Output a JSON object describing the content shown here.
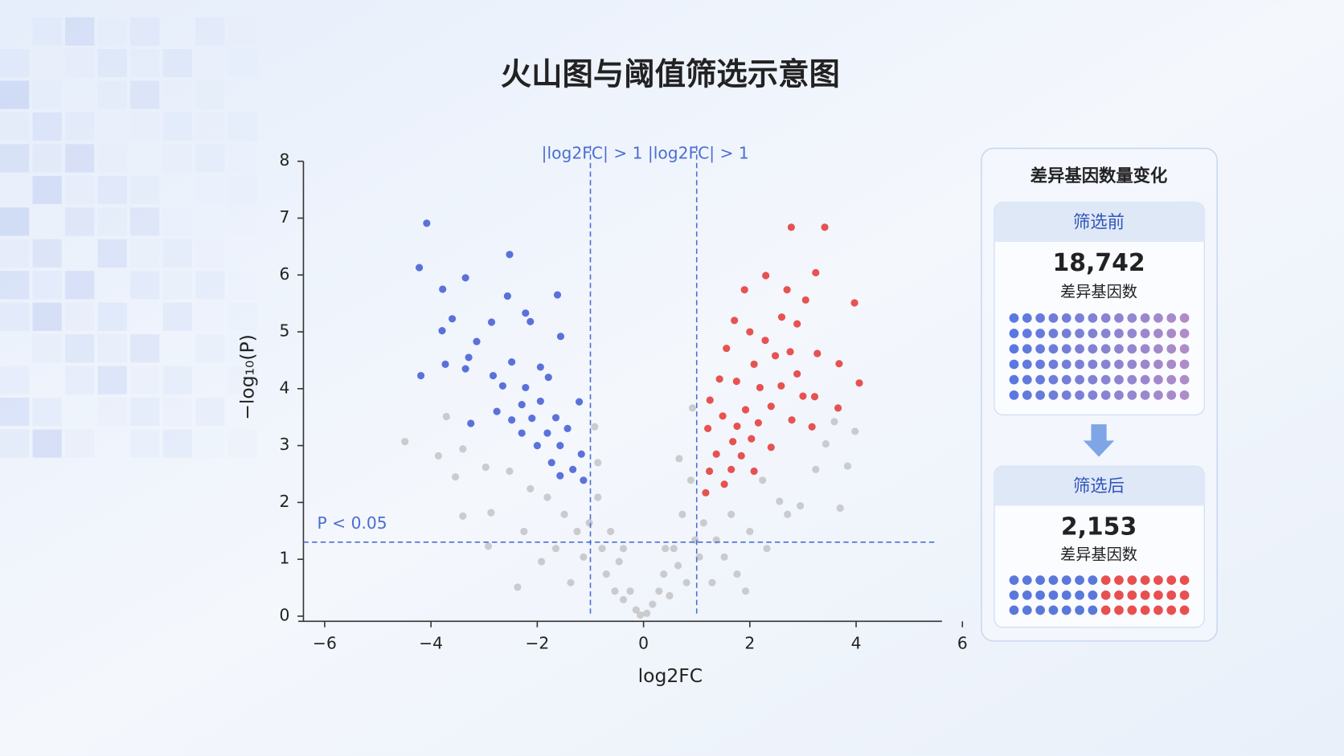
{
  "chart_data": {
    "type": "scatter",
    "title": "火山图与阈值筛选示意图",
    "xlabel": "log2FC",
    "ylabel": "−log₁₀(P)",
    "xlim": [
      -6.4,
      6.1
    ],
    "ylim": [
      0,
      8
    ],
    "xticks": [
      {
        "value": -6,
        "label": "−6"
      },
      {
        "value": -4,
        "label": "−4"
      },
      {
        "value": -2,
        "label": "−2"
      },
      0,
      2,
      4,
      6
    ],
    "yticks": [
      0,
      1,
      2,
      3,
      4,
      5,
      6,
      7,
      8
    ],
    "thresholds": {
      "x": [
        -1,
        1
      ],
      "y": 1.301,
      "x_label": "|log2FC| > 1",
      "y_label": "P < 0.05",
      "color": "#4a6fd0"
    },
    "series": [
      {
        "color": "#c6c6c8",
        "x": [
          -4.49,
          -3.71,
          -3.86,
          -3.4,
          -3.54,
          -3.4,
          -2.92,
          -2.87,
          -2.97,
          -2.37,
          -2.52,
          -2.25,
          -1.92,
          -1.81,
          -1.65,
          -1.49,
          -1.37,
          -1.25,
          -1.13,
          -1.02,
          -0.92,
          -0.86,
          -0.78,
          -0.7,
          -0.62,
          -0.54,
          -0.46,
          -0.38,
          -0.25,
          -0.14,
          -0.06,
          0.06,
          0.17,
          0.29,
          0.38,
          0.49,
          0.57,
          0.65,
          0.73,
          0.81,
          0.89,
          0.92,
          0.97,
          1.05,
          1.13,
          1.29,
          1.37,
          1.52,
          1.65,
          1.76,
          1.92,
          2.0,
          2.24,
          2.32,
          2.56,
          2.71,
          2.95,
          3.24,
          3.43,
          3.59,
          3.7,
          3.84,
          3.98,
          0.67,
          0.41,
          -0.38,
          -0.86,
          -2.13
        ],
        "y": [
          3.07,
          3.51,
          2.82,
          2.94,
          2.45,
          1.76,
          1.23,
          1.82,
          2.62,
          0.51,
          2.55,
          1.49,
          0.96,
          2.09,
          1.19,
          1.79,
          0.59,
          1.49,
          1.04,
          1.64,
          3.33,
          2.09,
          1.19,
          0.74,
          1.49,
          0.44,
          0.96,
          0.29,
          0.44,
          0.11,
          0.02,
          0.05,
          0.21,
          0.44,
          0.74,
          0.36,
          1.19,
          0.89,
          1.79,
          0.59,
          2.39,
          3.66,
          1.34,
          1.04,
          1.64,
          0.59,
          1.34,
          1.04,
          1.79,
          0.74,
          0.44,
          1.49,
          2.39,
          1.19,
          2.02,
          1.79,
          1.94,
          2.58,
          3.03,
          3.42,
          1.9,
          2.64,
          3.25,
          2.77,
          1.19,
          1.19,
          2.7,
          2.24
        ]
      },
      {
        "color": "#4a63d6",
        "x": [
          -4.08,
          -4.22,
          -3.78,
          -3.35,
          -2.52,
          -2.56,
          -3.6,
          -3.79,
          -2.86,
          -2.22,
          -2.13,
          -3.14,
          -3.29,
          -3.73,
          -4.19,
          -3.35,
          -2.83,
          -2.48,
          -1.94,
          -1.56,
          -1.62,
          -2.65,
          -2.22,
          -1.79,
          -3.25,
          -2.76,
          -2.29,
          -1.94,
          -1.21,
          -2.48,
          -2.1,
          -1.65,
          -2.29,
          -1.81,
          -1.43,
          -2.0,
          -1.57,
          -1.17,
          -1.73,
          -1.33,
          -1.57,
          -1.13
        ],
        "y": [
          6.91,
          6.13,
          5.75,
          5.95,
          6.36,
          5.63,
          5.23,
          5.02,
          5.17,
          5.33,
          5.18,
          4.83,
          4.55,
          4.43,
          4.23,
          4.35,
          4.23,
          4.47,
          4.38,
          4.92,
          5.65,
          4.05,
          4.02,
          4.2,
          3.39,
          3.6,
          3.72,
          3.78,
          3.77,
          3.45,
          3.48,
          3.49,
          3.22,
          3.22,
          3.3,
          3.0,
          3.0,
          2.85,
          2.7,
          2.58,
          2.47,
          2.39
        ]
      },
      {
        "color": "#e4403f",
        "x": [
          2.78,
          3.41,
          2.3,
          3.24,
          2.7,
          1.9,
          3.05,
          3.97,
          1.71,
          2.6,
          2.89,
          2.0,
          2.29,
          1.56,
          2.76,
          3.27,
          3.68,
          4.06,
          1.43,
          2.08,
          2.48,
          2.89,
          1.75,
          2.19,
          2.59,
          3.0,
          3.22,
          1.25,
          1.92,
          2.4,
          2.79,
          3.66,
          3.17,
          1.49,
          1.76,
          2.16,
          1.21,
          1.68,
          2.03,
          2.4,
          1.37,
          1.84,
          1.24,
          1.65,
          2.08,
          1.17,
          1.52
        ],
        "y": [
          6.84,
          6.84,
          5.99,
          6.04,
          5.74,
          5.74,
          5.56,
          5.51,
          5.2,
          5.26,
          5.14,
          5.0,
          4.85,
          4.71,
          4.65,
          4.62,
          4.44,
          4.1,
          4.17,
          4.43,
          4.58,
          4.26,
          4.13,
          4.02,
          4.05,
          3.87,
          3.86,
          3.8,
          3.63,
          3.69,
          3.45,
          3.66,
          3.33,
          3.52,
          3.34,
          3.4,
          3.3,
          3.07,
          3.12,
          2.97,
          2.85,
          2.82,
          2.55,
          2.58,
          2.55,
          2.17,
          2.32
        ]
      }
    ]
  },
  "panel": {
    "title": "差异基因数量变化",
    "before": {
      "label": "筛选前",
      "count": "18,742",
      "caption": "差异基因数"
    },
    "after": {
      "label": "筛选后",
      "count": "2,153",
      "caption": "差异基因数"
    }
  }
}
